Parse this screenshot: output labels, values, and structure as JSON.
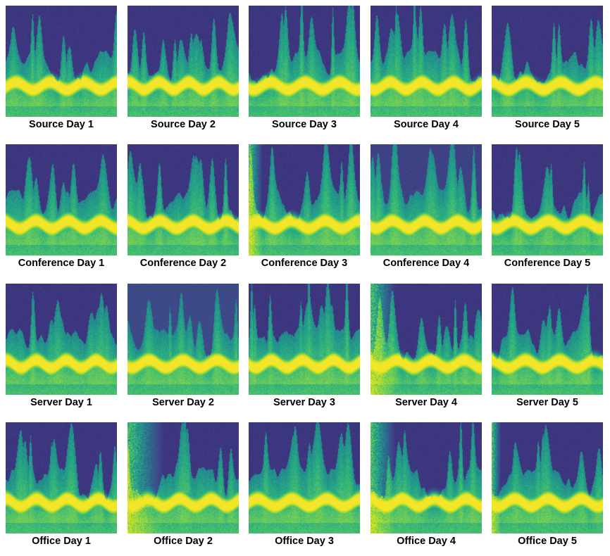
{
  "colormap": [
    "#3c2c7a",
    "#3e4a89",
    "#2f6b8e",
    "#21908d",
    "#2bb07f",
    "#5fc862",
    "#9fd93b",
    "#d4e21a",
    "#f2e52a"
  ],
  "rows": [
    {
      "panels": [
        {
          "label": "Source Day 1"
        },
        {
          "label": "Source Day 2"
        },
        {
          "label": "Source Day 3"
        },
        {
          "label": "Source Day 4"
        },
        {
          "label": "Source Day 5"
        }
      ]
    },
    {
      "panels": [
        {
          "label": "Conference Day 1"
        },
        {
          "label": "Conference Day 2"
        },
        {
          "label": "Conference Day 3"
        },
        {
          "label": "Conference Day 4"
        },
        {
          "label": "Conference Day 5"
        }
      ]
    },
    {
      "panels": [
        {
          "label": "Server Day 1"
        },
        {
          "label": "Server Day 2"
        },
        {
          "label": "Server Day 3"
        },
        {
          "label": "Server Day 4"
        },
        {
          "label": "Server Day 5"
        }
      ]
    },
    {
      "panels": [
        {
          "label": "Office Day 1"
        },
        {
          "label": "Office Day 2"
        },
        {
          "label": "Office Day 3"
        },
        {
          "label": "Office Day 4"
        },
        {
          "label": "Office Day 5"
        }
      ]
    }
  ]
}
